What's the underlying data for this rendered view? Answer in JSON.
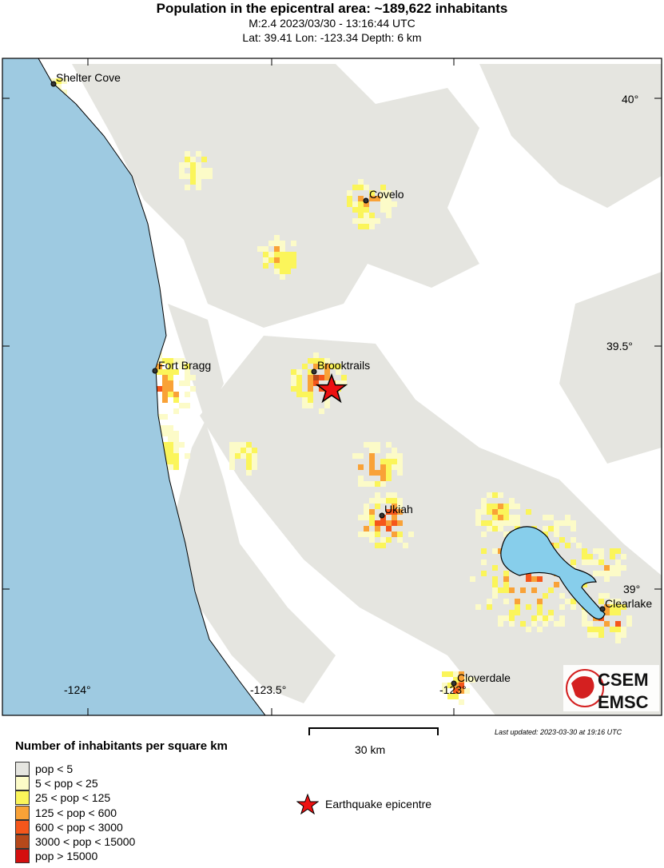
{
  "header": {
    "title": "Population in the epicentral area: ~189,622 inhabitants",
    "subtitle": "M:2.4 2023/03/30 - 13:16:44 UTC",
    "location": "Lat: 39.41 Lon: -123.34 Depth: 6 km"
  },
  "map": {
    "cities": [
      {
        "name": "Shelter Cove"
      },
      {
        "name": "Covelo"
      },
      {
        "name": "Fort Bragg"
      },
      {
        "name": "Brooktrails"
      },
      {
        "name": "Ukiah"
      },
      {
        "name": "Clearlake"
      },
      {
        "name": "Cloverdale"
      }
    ],
    "lat_labels": [
      "40°",
      "39.5°",
      "39°"
    ],
    "lon_labels": [
      "-124°",
      "-123.5°",
      "-123°"
    ],
    "epicentre": {
      "lat": 39.41,
      "lon": -123.34
    },
    "scale_bar": "30 km",
    "last_updated": "Last updated: 2023-03-30 at 19:16 UTC",
    "logo_text": "CSEM EMSC",
    "colors": {
      "ocean": "#9ecae1",
      "lake": "#87ceeb",
      "epicentre": "#ee1111"
    }
  },
  "legend": {
    "title": "Number of inhabitants per square km",
    "items": [
      {
        "label": "pop < 5",
        "color": "#e5e5e0"
      },
      {
        "label": "5 < pop < 25",
        "color": "#fcfbc8"
      },
      {
        "label": "25 < pop < 125",
        "color": "#fbf55a"
      },
      {
        "label": "125 < pop < 600",
        "color": "#f9a237"
      },
      {
        "label": "600 < pop < 3000",
        "color": "#f5561b"
      },
      {
        "label": "3000 < pop < 15000",
        "color": "#b6481a"
      },
      {
        "label": "pop > 15000",
        "color": "#d40f0f"
      }
    ],
    "epicentre_label": "Earthquake epicentre"
  }
}
